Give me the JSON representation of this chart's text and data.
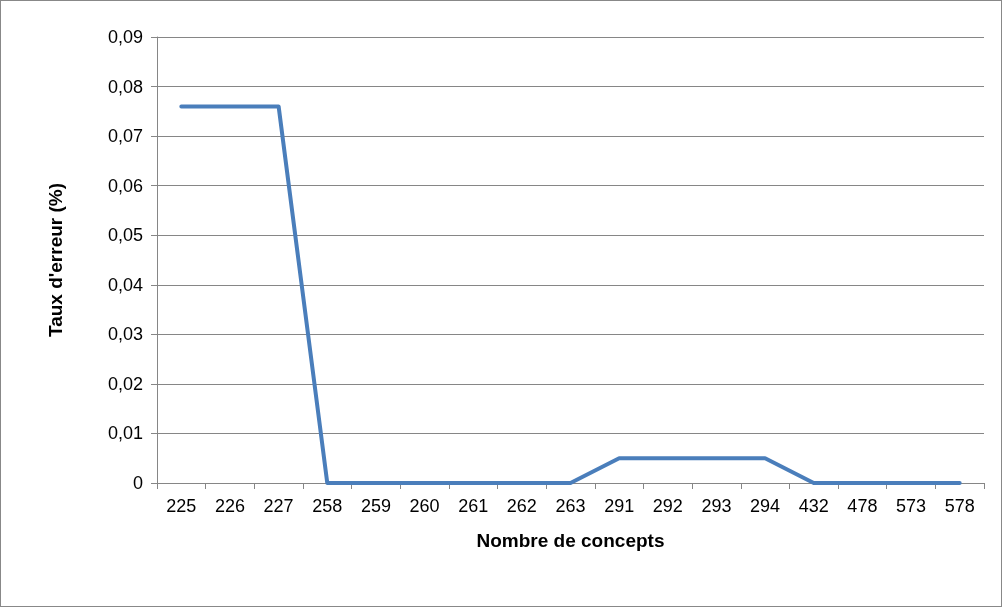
{
  "chart_data": {
    "type": "line",
    "xlabel": "Nombre de concepts",
    "ylabel": "Taux d'erreur (%)",
    "categories": [
      "225",
      "226",
      "227",
      "258",
      "259",
      "260",
      "261",
      "262",
      "263",
      "291",
      "292",
      "293",
      "294",
      "432",
      "478",
      "573",
      "578"
    ],
    "series": [
      {
        "color": "#4a7ebb",
        "values": [
          0.076,
          0.076,
          0.076,
          0,
          0,
          0,
          0,
          0,
          0,
          0.005,
          0.005,
          0.005,
          0.005,
          0,
          0,
          0,
          0
        ]
      }
    ],
    "ylim": [
      0,
      0.09
    ],
    "yticks": [
      0,
      {
        "value": 0.01,
        "label": "0,01"
      },
      {
        "value": 0.02,
        "label": "0,02"
      },
      {
        "value": 0.03,
        "label": "0,03"
      },
      {
        "value": 0.04,
        "label": "0,04"
      },
      {
        "value": 0.05,
        "label": "0,05"
      },
      {
        "value": 0.06,
        "label": "0,06"
      },
      {
        "value": 0.07,
        "label": "0,07"
      },
      {
        "value": 0.08,
        "label": "0,08"
      },
      {
        "value": 0.09,
        "label": "0,09"
      }
    ],
    "grid": "y",
    "marker": "none",
    "line_style": "solid"
  }
}
